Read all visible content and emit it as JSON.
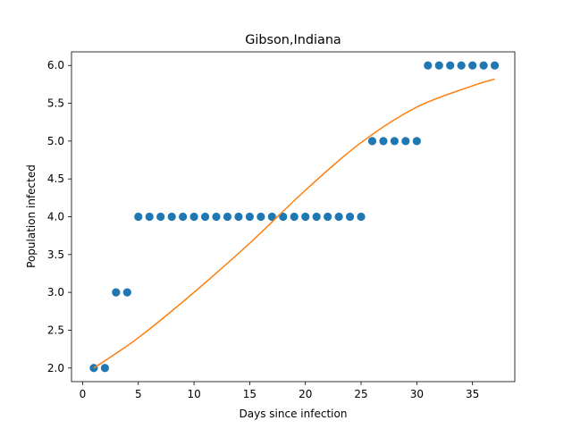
{
  "chart_data": {
    "type": "scatter",
    "title": "Gibson,Indiana",
    "xlabel": "Days since infection",
    "ylabel": "Population infected",
    "xlim": [
      -1,
      38.8
    ],
    "ylim": [
      1.82,
      6.18
    ],
    "xticks": [
      0,
      5,
      10,
      15,
      20,
      25,
      30,
      35
    ],
    "xtick_labels": [
      "0",
      "5",
      "10",
      "15",
      "20",
      "25",
      "30",
      "35"
    ],
    "yticks": [
      2.0,
      2.5,
      3.0,
      3.5,
      4.0,
      4.5,
      5.0,
      5.5,
      6.0
    ],
    "ytick_labels": [
      "2.0",
      "2.5",
      "3.0",
      "3.5",
      "4.0",
      "4.5",
      "5.0",
      "5.5",
      "6.0"
    ],
    "grid": false,
    "series": [
      {
        "kind": "scatter",
        "color": "#1f77b4",
        "x": [
          1,
          2,
          3,
          4,
          5,
          6,
          7,
          8,
          9,
          10,
          11,
          12,
          13,
          14,
          15,
          16,
          17,
          18,
          19,
          20,
          21,
          22,
          23,
          24,
          25,
          26,
          27,
          28,
          29,
          30,
          31,
          32,
          33,
          34,
          35,
          36,
          37
        ],
        "y": [
          2,
          2,
          3,
          3,
          4,
          4,
          4,
          4,
          4,
          4,
          4,
          4,
          4,
          4,
          4,
          4,
          4,
          4,
          4,
          4,
          4,
          4,
          4,
          4,
          4,
          5,
          5,
          5,
          5,
          5,
          6,
          6,
          6,
          6,
          6,
          6,
          6
        ]
      },
      {
        "kind": "line",
        "color": "#ff7f0e",
        "x": [
          1,
          5,
          10,
          15,
          20,
          25,
          30,
          35,
          37
        ],
        "y": [
          2.0,
          2.4,
          3.0,
          3.65,
          4.35,
          4.98,
          5.45,
          5.73,
          5.82
        ]
      }
    ]
  }
}
